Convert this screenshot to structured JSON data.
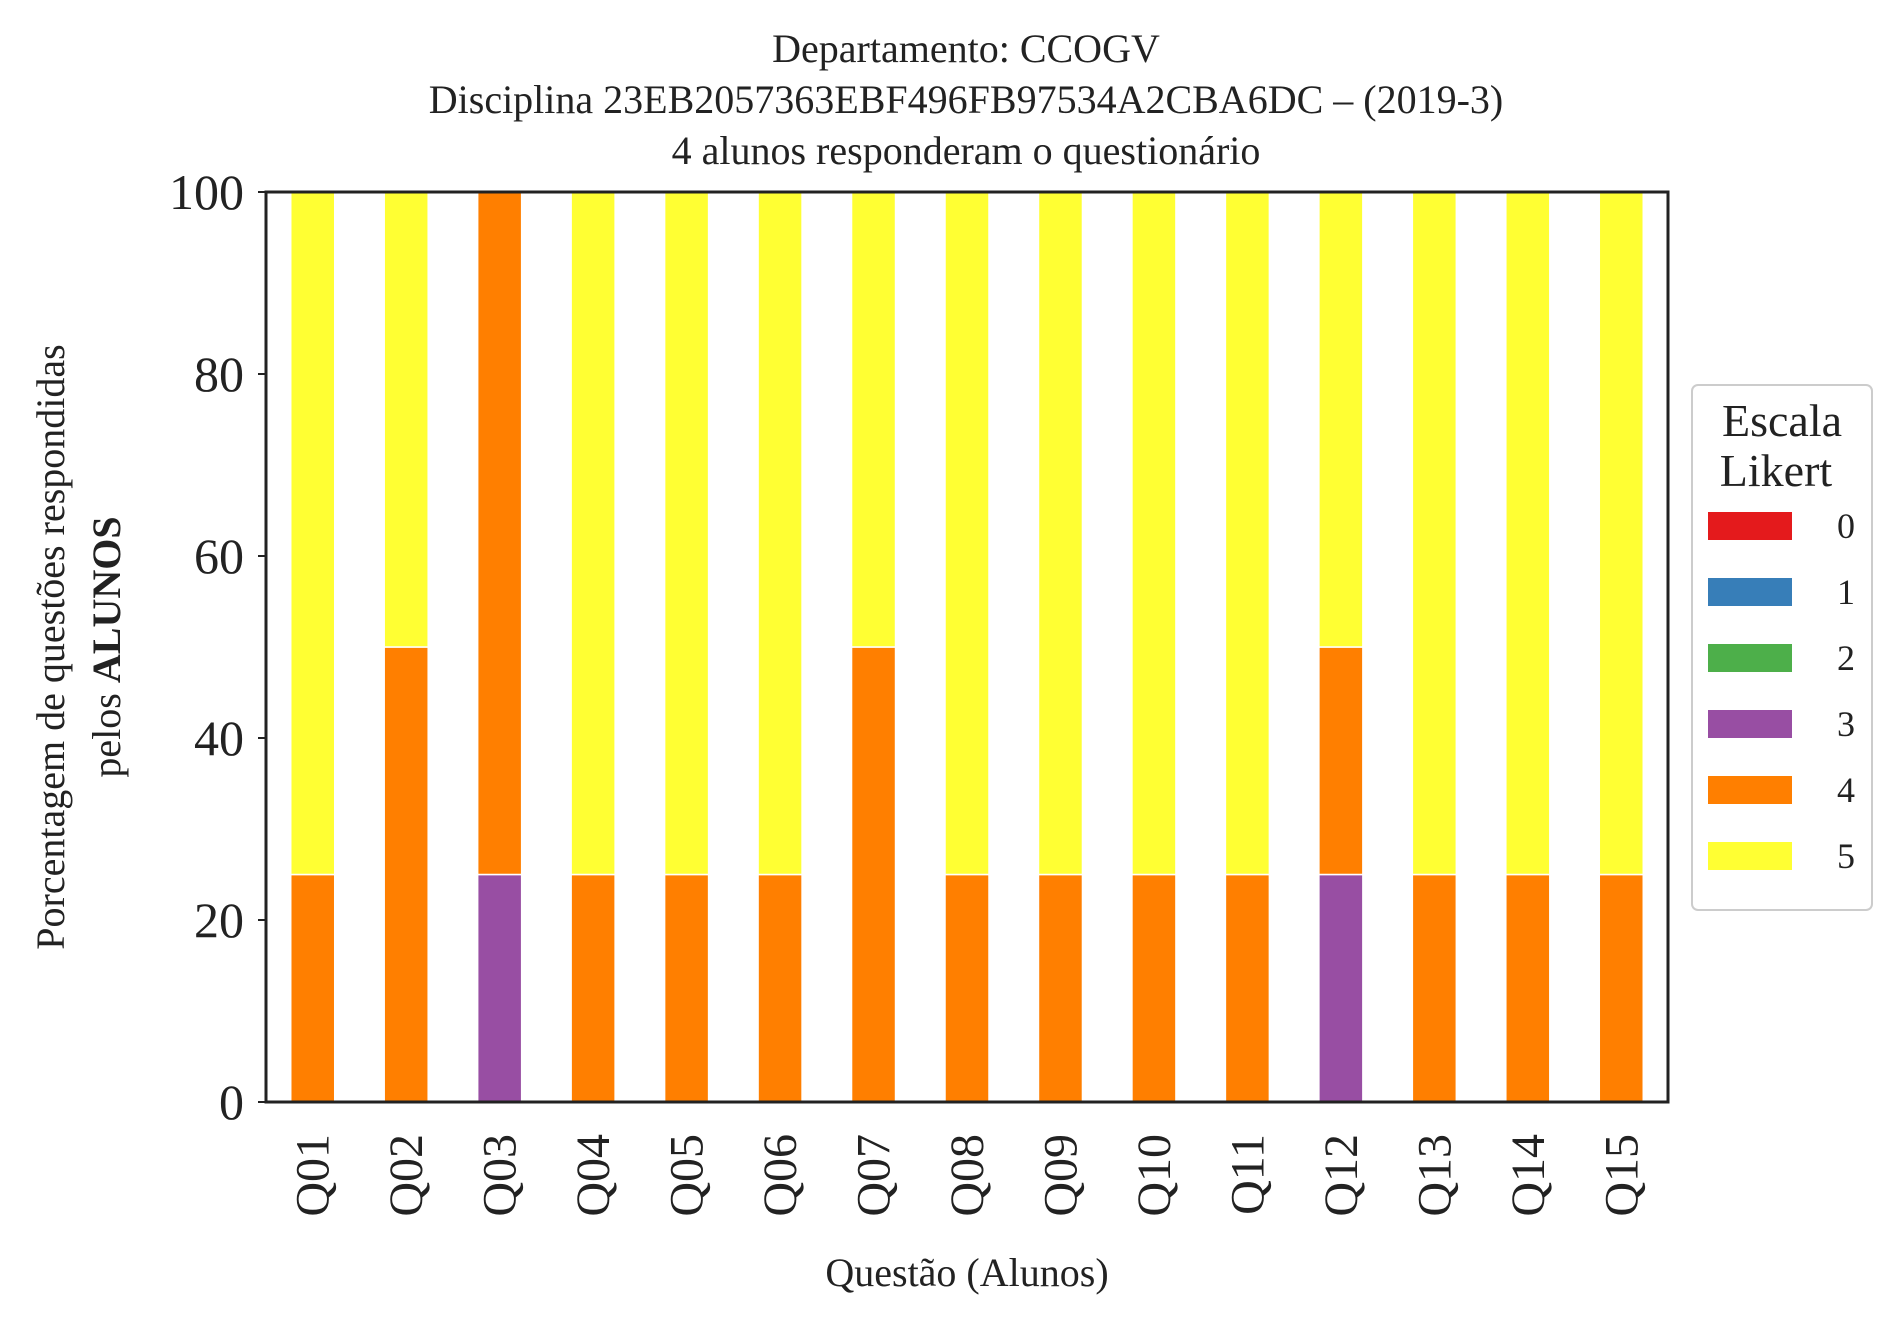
{
  "chart_data": {
    "type": "bar",
    "stacked": true,
    "title": [
      "Departamento: CCOGV",
      "Disciplina 23EB2057363EBF496FB97534A2CBA6DC – (2019-3)",
      "4 alunos responderam o questionário"
    ],
    "xlabel": "Questão (Alunos)",
    "ylabel_line1": "Porcentagem de questões respondidas",
    "ylabel_line2_prefix": "pelos ",
    "ylabel_line2_bold": "ALUNOS",
    "ylim": [
      0,
      100
    ],
    "yticks": [
      0,
      20,
      40,
      60,
      80,
      100
    ],
    "grid": false,
    "legend_position": "right",
    "legend_title": [
      "Escala",
      "Likert"
    ],
    "categories": [
      "Q01",
      "Q02",
      "Q03",
      "Q04",
      "Q05",
      "Q06",
      "Q07",
      "Q08",
      "Q09",
      "Q10",
      "Q11",
      "Q12",
      "Q13",
      "Q14",
      "Q15"
    ],
    "series": [
      {
        "name": "0",
        "color": "#e41a1c",
        "values": [
          0,
          0,
          0,
          0,
          0,
          0,
          0,
          0,
          0,
          0,
          0,
          0,
          0,
          0,
          0
        ]
      },
      {
        "name": "1",
        "color": "#377eb8",
        "values": [
          0,
          0,
          0,
          0,
          0,
          0,
          0,
          0,
          0,
          0,
          0,
          0,
          0,
          0,
          0
        ]
      },
      {
        "name": "2",
        "color": "#4daf4a",
        "values": [
          0,
          0,
          0,
          0,
          0,
          0,
          0,
          0,
          0,
          0,
          0,
          0,
          0,
          0,
          0
        ]
      },
      {
        "name": "3",
        "color": "#984ea3",
        "values": [
          0,
          0,
          25,
          0,
          0,
          0,
          0,
          0,
          0,
          0,
          0,
          25,
          0,
          0,
          0
        ]
      },
      {
        "name": "4",
        "color": "#ff7f00",
        "values": [
          25,
          50,
          75,
          25,
          25,
          25,
          50,
          25,
          25,
          25,
          25,
          25,
          25,
          25,
          25
        ]
      },
      {
        "name": "5",
        "color": "#ffff33",
        "values": [
          75,
          50,
          0,
          75,
          75,
          75,
          50,
          75,
          75,
          75,
          75,
          50,
          75,
          75,
          75
        ]
      }
    ]
  }
}
